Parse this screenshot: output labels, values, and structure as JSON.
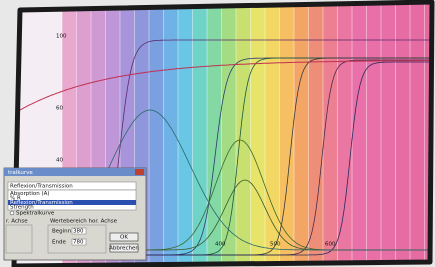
{
  "dialog": {
    "title": "tralkurve",
    "dropdown": "Reflexion/Transmission",
    "list": [
      "Absorption (A)",
      "% R",
      "Reflexion/Transmission",
      "Strength"
    ],
    "radio": "Spektralkurve",
    "left_group": "r. Achse",
    "right_group": "Wertebereich hor. Achse",
    "begin_label": "Beginn",
    "begin_value": "380",
    "end_label": "Ende",
    "end_value": "780",
    "ok": "OK",
    "cancel": "Abbrechen"
  },
  "axis": {
    "y_labels": [
      "100",
      "60",
      "40"
    ],
    "x_labels": [
      "400",
      "500",
      "600"
    ]
  }
}
